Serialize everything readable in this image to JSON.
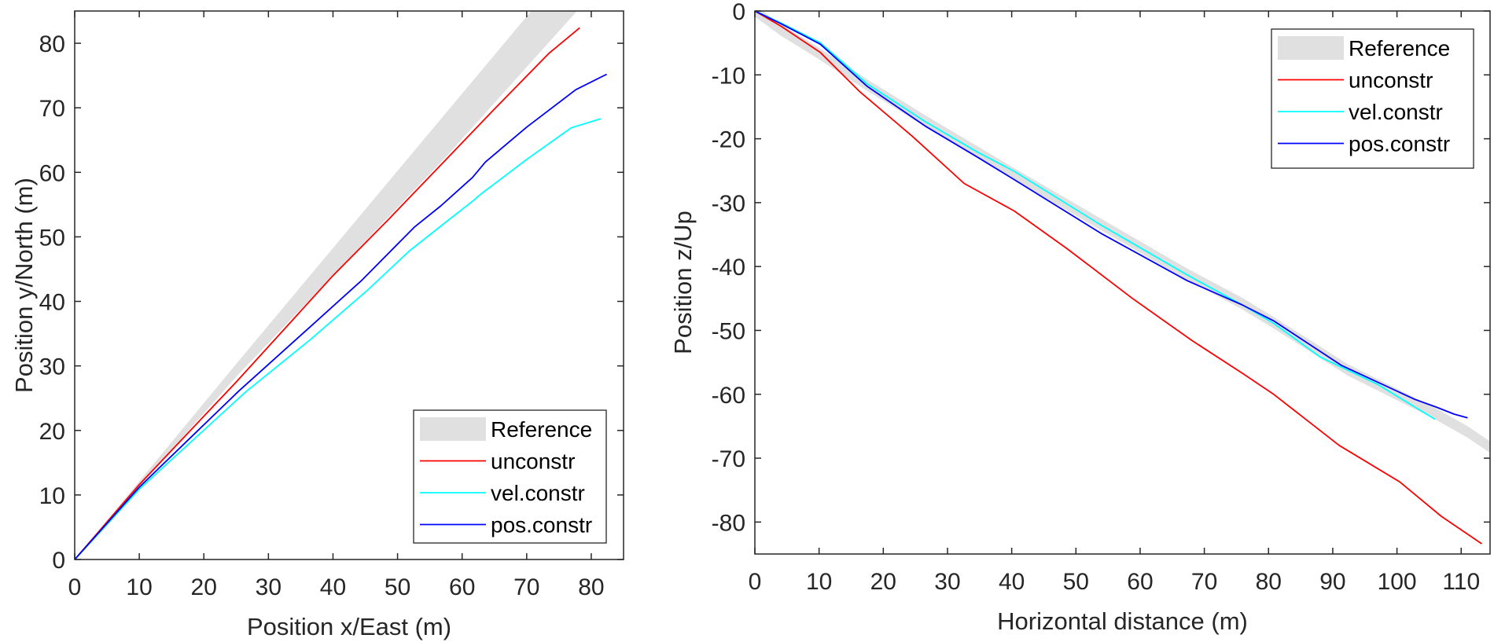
{
  "chart_data": [
    {
      "type": "line",
      "xlabel": "Position x/East (m)",
      "ylabel": "Position y/North (m)",
      "xlim": [
        0,
        85
      ],
      "ylim": [
        0,
        85
      ],
      "xticks": [
        "0",
        "10",
        "20",
        "30",
        "40",
        "50",
        "60",
        "70",
        "80"
      ],
      "yticks": [
        "0",
        "10",
        "20",
        "30",
        "40",
        "50",
        "60",
        "70",
        "80"
      ],
      "grid": false,
      "legend_position": "bottom-right",
      "reference": {
        "name": "Reference",
        "color": "#e0e0e0",
        "upper": [
          [
            0,
            0
          ],
          [
            25,
            30.3
          ],
          [
            51.8,
            62.4
          ],
          [
            70.7,
            85
          ]
        ],
        "lower": [
          [
            0,
            0
          ],
          [
            25,
            28.3
          ],
          [
            57.5,
            62.4
          ],
          [
            77.8,
            85
          ]
        ]
      },
      "series": [
        {
          "name": "unconstr",
          "color": "#ff0000",
          "points": [
            [
              0,
              0
            ],
            [
              10,
              11.6
            ],
            [
              25,
              27.5
            ],
            [
              33.1,
              36.4
            ],
            [
              40,
              44.0
            ],
            [
              48.6,
              52.7
            ],
            [
              57.9,
              62.4
            ],
            [
              65,
              69.8
            ],
            [
              73.4,
              78.4
            ],
            [
              78.2,
              82.4
            ]
          ]
        },
        {
          "name": "vel.constr",
          "color": "#00ffff",
          "points": [
            [
              0,
              0
            ],
            [
              10,
              10.9
            ],
            [
              26.4,
              25.9
            ],
            [
              36.4,
              34.0
            ],
            [
              45.3,
              41.7
            ],
            [
              51.8,
              47.8
            ],
            [
              57.5,
              52.3
            ],
            [
              61.6,
              55.5
            ],
            [
              63,
              56.7
            ],
            [
              70,
              62.0
            ],
            [
              76.9,
              66.9
            ],
            [
              81.5,
              68.3
            ]
          ]
        },
        {
          "name": "pos.constr",
          "color": "#0000ff",
          "points": [
            [
              0,
              0
            ],
            [
              10,
              11.2
            ],
            [
              25.4,
              26.1
            ],
            [
              36.4,
              36.0
            ],
            [
              44.5,
              43.3
            ],
            [
              52.6,
              51.5
            ],
            [
              56.7,
              54.8
            ],
            [
              61.6,
              59.2
            ],
            [
              63.6,
              61.6
            ],
            [
              70,
              67.0
            ],
            [
              77.6,
              72.8
            ],
            [
              82.4,
              75.2
            ]
          ]
        }
      ]
    },
    {
      "type": "line",
      "xlabel": "Horizontal distance (m)",
      "ylabel": "Position z/Up",
      "xlim": [
        0,
        114.5
      ],
      "ylim": [
        -85,
        0
      ],
      "xticks": [
        "0",
        "10",
        "20",
        "30",
        "40",
        "50",
        "60",
        "70",
        "80",
        "90",
        "100",
        "110"
      ],
      "yticks": [
        "0",
        "-10",
        "-20",
        "-30",
        "-40",
        "-50",
        "-60",
        "-70",
        "-80"
      ],
      "grid": false,
      "legend_position": "top-right",
      "reference": {
        "name": "Reference",
        "color": "#e0e0e0",
        "upper": [
          [
            0,
            0.9
          ],
          [
            4.1,
            -2.1
          ],
          [
            10.2,
            -5.9
          ],
          [
            17.5,
            -10.7
          ],
          [
            26.5,
            -16.3
          ],
          [
            34.7,
            -21.2
          ],
          [
            40.4,
            -24.6
          ],
          [
            53.9,
            -32.5
          ],
          [
            67.3,
            -40.3
          ],
          [
            75.9,
            -44.9
          ],
          [
            80.8,
            -47.9
          ],
          [
            92.2,
            -55.2
          ],
          [
            106.1,
            -62.2
          ],
          [
            111,
            -65.0
          ],
          [
            114.4,
            -67.3
          ]
        ],
        "lower": [
          [
            0,
            -0.9
          ],
          [
            4.1,
            -3.9
          ],
          [
            10.2,
            -7.7
          ],
          [
            17.5,
            -12.5
          ],
          [
            26.5,
            -18.1
          ],
          [
            34.7,
            -23.0
          ],
          [
            40.4,
            -26.4
          ],
          [
            53.9,
            -34.3
          ],
          [
            67.3,
            -42.1
          ],
          [
            75.9,
            -46.7
          ],
          [
            80.8,
            -49.7
          ],
          [
            92.2,
            -57.0
          ],
          [
            106.1,
            -64.0
          ],
          [
            111,
            -66.8
          ],
          [
            114.4,
            -69.1
          ]
        ]
      },
      "series": [
        {
          "name": "unconstr",
          "color": "#ff0000",
          "points": [
            [
              0,
              0
            ],
            [
              4.1,
              -2.4
            ],
            [
              10.2,
              -6.5
            ],
            [
              16.3,
              -12.6
            ],
            [
              24.5,
              -19.6
            ],
            [
              32.6,
              -27.0
            ],
            [
              40.4,
              -31.3
            ],
            [
              48.6,
              -37.2
            ],
            [
              58.8,
              -45.0
            ],
            [
              68.1,
              -51.6
            ],
            [
              75.9,
              -56.7
            ],
            [
              80.8,
              -60.0
            ],
            [
              91.0,
              -68.0
            ],
            [
              100.4,
              -73.7
            ],
            [
              106.9,
              -79.1
            ],
            [
              113.2,
              -83.4
            ]
          ]
        },
        {
          "name": "vel.constr",
          "color": "#00ffff",
          "points": [
            [
              0,
              0
            ],
            [
              4.1,
              -1.9
            ],
            [
              10.2,
              -5.0
            ],
            [
              17.5,
              -11.4
            ],
            [
              26.5,
              -17.3
            ],
            [
              34.7,
              -22.1
            ],
            [
              40.4,
              -25.1
            ],
            [
              53.9,
              -33.5
            ],
            [
              67.3,
              -41.3
            ],
            [
              75.9,
              -46.0
            ],
            [
              80.8,
              -48.9
            ],
            [
              88.1,
              -54.2
            ],
            [
              97.1,
              -58.5
            ],
            [
              105.9,
              -63.9
            ]
          ]
        },
        {
          "name": "pos.constr",
          "color": "#0000ff",
          "points": [
            [
              0,
              0
            ],
            [
              4.1,
              -2.0
            ],
            [
              10.2,
              -5.2
            ],
            [
              17.5,
              -11.8
            ],
            [
              26.5,
              -18.0
            ],
            [
              34.7,
              -22.9
            ],
            [
              40.4,
              -26.4
            ],
            [
              53.9,
              -34.8
            ],
            [
              67.3,
              -42.2
            ],
            [
              75.9,
              -46.0
            ],
            [
              80.8,
              -48.5
            ],
            [
              91.4,
              -55.5
            ],
            [
              102.8,
              -60.8
            ],
            [
              106.1,
              -62.0
            ],
            [
              108.9,
              -63.1
            ],
            [
              111.0,
              -63.7
            ]
          ]
        }
      ]
    }
  ]
}
